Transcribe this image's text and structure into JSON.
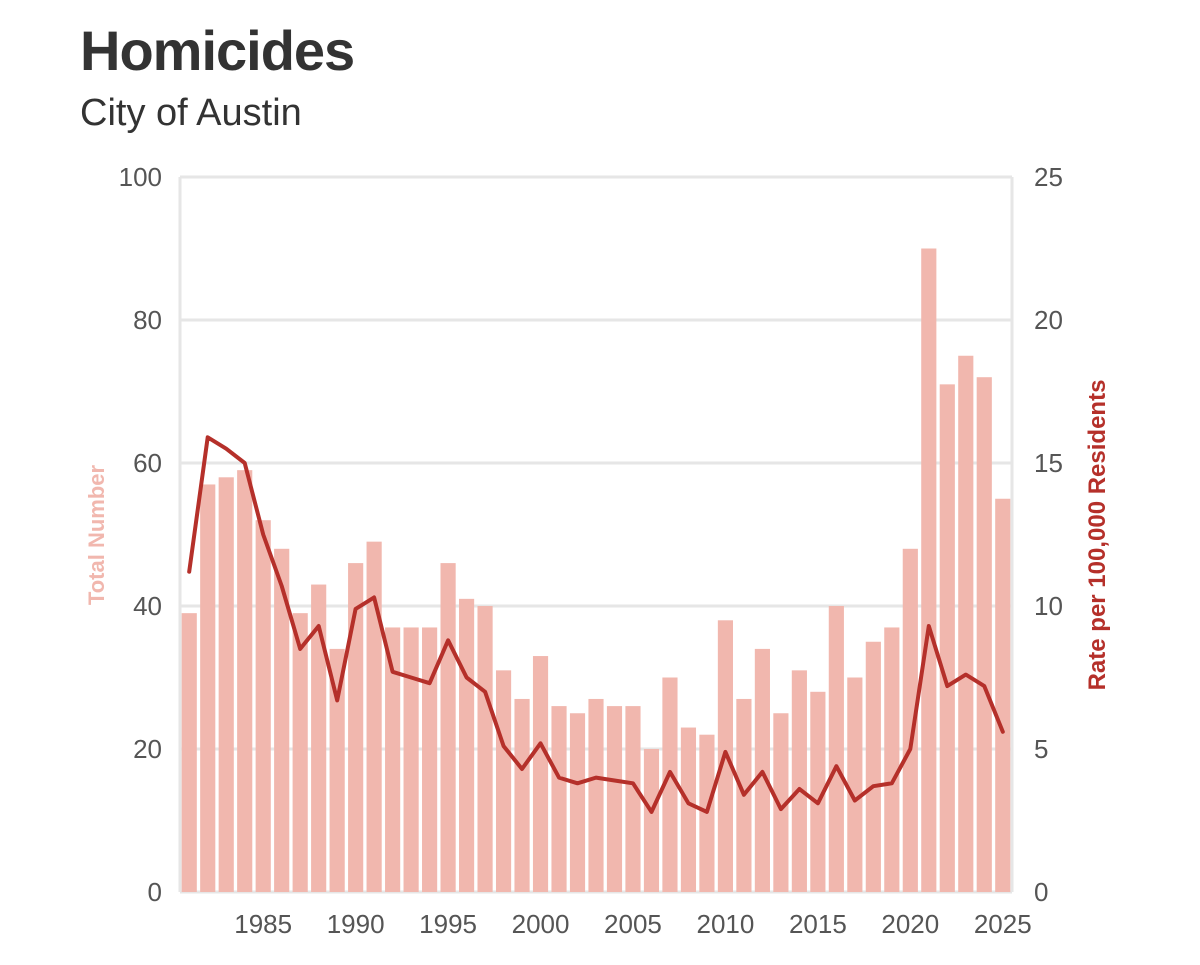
{
  "title": "Homicides",
  "subtitle": "City of Austin",
  "colors": {
    "bars": "#f1b7ae",
    "line": "#b5302a",
    "grid": "#e6e6e6",
    "text": "#333333"
  },
  "chart_data": {
    "type": "bar",
    "title": "Homicides",
    "subtitle": "City of Austin",
    "x": [
      1981,
      1982,
      1983,
      1984,
      1985,
      1986,
      1987,
      1988,
      1989,
      1990,
      1991,
      1992,
      1993,
      1994,
      1995,
      1996,
      1997,
      1998,
      1999,
      2000,
      2001,
      2002,
      2003,
      2004,
      2005,
      2006,
      2007,
      2008,
      2009,
      2010,
      2011,
      2012,
      2013,
      2014,
      2015,
      2016,
      2017,
      2018,
      2019,
      2020,
      2021,
      2022,
      2023,
      2024,
      2025
    ],
    "series": [
      {
        "name": "Total Number",
        "type": "bar",
        "axis": "left",
        "values": [
          39,
          57,
          58,
          59,
          52,
          48,
          39,
          43,
          34,
          46,
          49,
          37,
          37,
          37,
          46,
          41,
          40,
          31,
          27,
          33,
          26,
          25,
          27,
          26,
          26,
          20,
          30,
          23,
          22,
          38,
          27,
          34,
          25,
          31,
          28,
          40,
          30,
          35,
          37,
          48,
          90,
          71,
          75,
          72,
          55
        ]
      },
      {
        "name": "Rate per 100,000 Residents",
        "type": "line",
        "axis": "right",
        "values": [
          11.2,
          15.9,
          15.5,
          15.0,
          12.5,
          10.7,
          8.5,
          9.3,
          6.7,
          9.9,
          10.3,
          7.7,
          7.5,
          7.3,
          8.8,
          7.5,
          7.0,
          5.1,
          4.3,
          5.2,
          4.0,
          3.8,
          4.0,
          3.9,
          3.8,
          2.8,
          4.2,
          3.1,
          2.8,
          4.9,
          3.4,
          4.2,
          2.9,
          3.6,
          3.1,
          4.4,
          3.2,
          3.7,
          3.8,
          5.0,
          9.3,
          7.2,
          7.6,
          7.2,
          5.6
        ]
      }
    ],
    "ylabel_left": "Total Number",
    "ylabel_right": "Rate per 100,000 Residents",
    "ylim_left": [
      0,
      100
    ],
    "ylim_right": [
      0,
      25
    ],
    "yticks_left": [
      "0",
      "20",
      "40",
      "60",
      "80",
      "100"
    ],
    "yticks_right": [
      "0",
      "5",
      "10",
      "15",
      "20",
      "25"
    ],
    "xticks": [
      "1985",
      "1990",
      "1995",
      "2000",
      "2005",
      "2010",
      "2015",
      "2020",
      "2025"
    ],
    "grid": true
  }
}
